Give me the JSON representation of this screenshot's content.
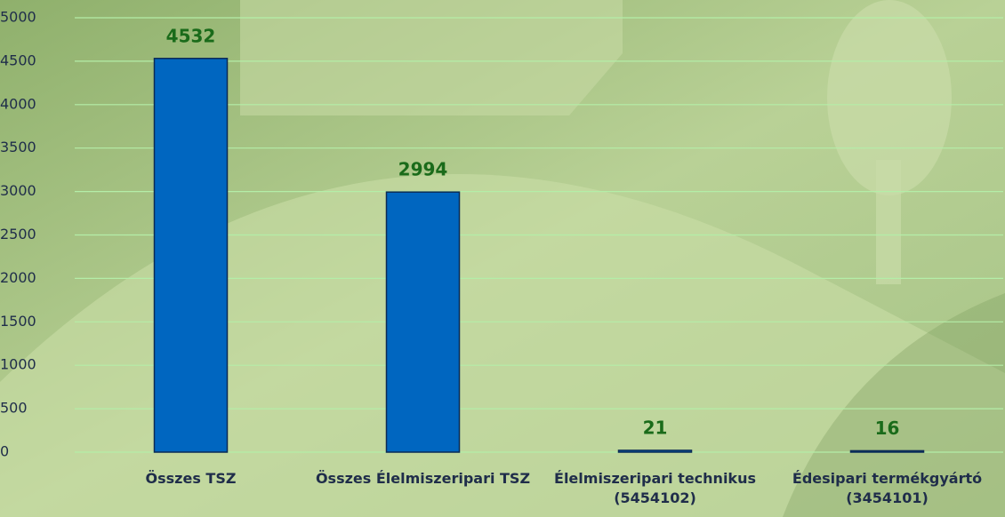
{
  "chart_data": {
    "type": "bar",
    "categories": [
      "Összes TSZ",
      "Összes Élelmiszeripari TSZ",
      "Élelmiszeripari technikus (5454102)",
      "Édesipari termékgyártó (3454101)"
    ],
    "values": [
      4532,
      2994,
      21,
      16
    ],
    "color": "#0066c0",
    "ylim": [
      0,
      5000
    ],
    "yticks": [
      0,
      500,
      1000,
      1500,
      2000,
      2500,
      3000,
      3500,
      4000,
      4500,
      5000
    ],
    "grid": true
  }
}
